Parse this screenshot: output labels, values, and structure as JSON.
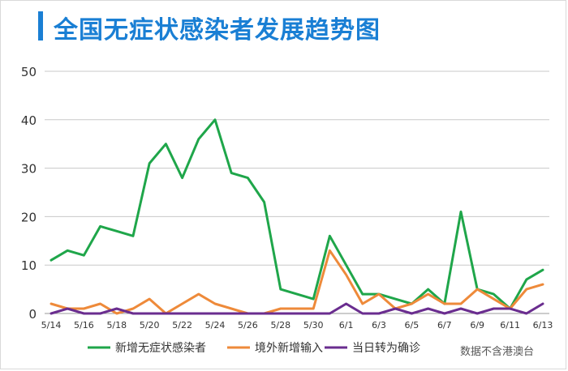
{
  "title": "全国无症状感染者发展趋势图",
  "source_note": "数据不含港澳台",
  "chart_data": {
    "type": "line",
    "title": "全国无症状感染者发展趋势图",
    "xlabel": "",
    "ylabel": "",
    "ylim": [
      0,
      50
    ],
    "yticks": [
      0,
      10,
      20,
      30,
      40,
      50
    ],
    "grid": "horizontal",
    "legend": "bottom",
    "x": [
      "5/14",
      "5/15",
      "5/16",
      "5/17",
      "5/18",
      "5/19",
      "5/20",
      "5/21",
      "5/22",
      "5/23",
      "5/24",
      "5/25",
      "5/26",
      "5/27",
      "5/28",
      "5/29",
      "5/30",
      "5/31",
      "6/1",
      "6/2",
      "6/3",
      "6/4",
      "6/5",
      "6/6",
      "6/7",
      "6/8",
      "6/9",
      "6/10",
      "6/11",
      "6/12",
      "6/13"
    ],
    "xtick_labels": [
      "5/14",
      "5/16",
      "5/18",
      "5/20",
      "5/22",
      "5/24",
      "5/26",
      "5/28",
      "5/30",
      "6/1",
      "6/3",
      "6/5",
      "6/7",
      "6/9",
      "6/11",
      "6/13"
    ],
    "series": [
      {
        "name": "新增无症状感染者",
        "color": "#1fa64a",
        "values": [
          11,
          13,
          12,
          18,
          17,
          16,
          31,
          35,
          28,
          36,
          40,
          29,
          28,
          23,
          5,
          4,
          3,
          16,
          10,
          4,
          4,
          3,
          2,
          5,
          2,
          21,
          5,
          4,
          1,
          7,
          9
        ]
      },
      {
        "name": "境外新增输入",
        "color": "#ee8a3a",
        "values": [
          2,
          1,
          1,
          2,
          0,
          1,
          3,
          0,
          2,
          4,
          2,
          1,
          0,
          0,
          1,
          1,
          1,
          13,
          8,
          2,
          4,
          1,
          2,
          4,
          2,
          2,
          5,
          3,
          1,
          5,
          6
        ]
      },
      {
        "name": "当日转为确诊",
        "color": "#6a2d8f",
        "values": [
          0,
          1,
          0,
          0,
          1,
          0,
          0,
          0,
          0,
          0,
          0,
          0,
          0,
          0,
          0,
          0,
          0,
          0,
          2,
          0,
          0,
          1,
          0,
          1,
          0,
          1,
          0,
          1,
          1,
          0,
          2
        ]
      }
    ]
  }
}
